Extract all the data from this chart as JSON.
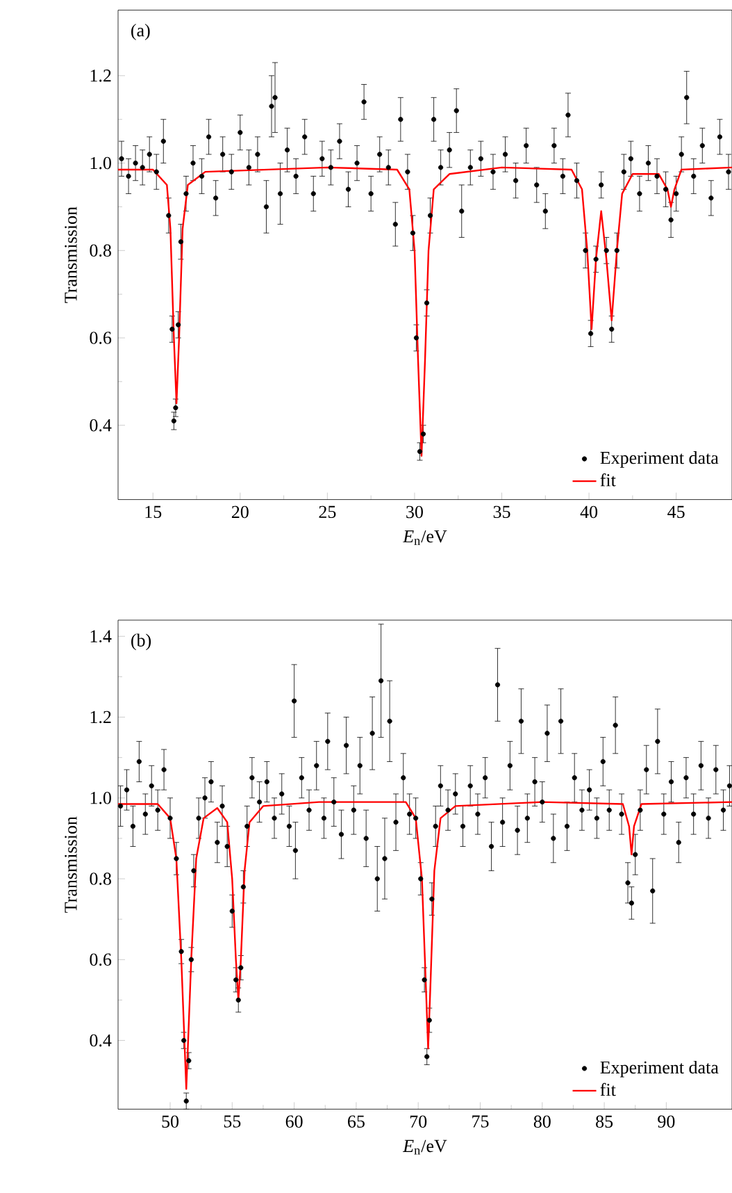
{
  "chart_data": [
    {
      "type": "scatter",
      "xlabel": "*E*$_{n}$/eV",
      "ylabel": "Transmission",
      "annotations": [
        "(a)"
      ],
      "legend": "bottom right",
      "xlim": [
        13,
        48.2
      ],
      "ylim": [
        0.23,
        1.35
      ],
      "xticks": [
        15,
        20,
        25,
        30,
        35,
        40,
        45
      ],
      "yticks": [
        {
          "value": 0.4,
          "label": "0.4"
        },
        {
          "value": 0.6,
          "label": "0.6"
        },
        {
          "value": 0.8,
          "label": "0.8"
        },
        {
          "value": 1.0,
          "label": "1.0"
        },
        {
          "value": 1.2,
          "label": "1.2"
        }
      ],
      "series": [
        {
          "name": "Experiment data",
          "marker": "circle",
          "color": "#000000",
          "x": [
            13.2,
            13.6,
            14.0,
            14.4,
            14.8,
            15.2,
            15.6,
            15.9,
            16.1,
            16.2,
            16.3,
            16.45,
            16.6,
            16.9,
            17.3,
            17.8,
            18.2,
            18.6,
            19.0,
            19.5,
            20.0,
            20.5,
            21.0,
            21.5,
            21.8,
            22.0,
            22.3,
            22.7,
            23.2,
            23.7,
            24.2,
            24.7,
            25.2,
            25.7,
            26.2,
            26.7,
            27.1,
            27.5,
            28.0,
            28.5,
            28.9,
            29.2,
            29.6,
            29.9,
            30.1,
            30.3,
            30.5,
            30.7,
            30.9,
            31.1,
            31.5,
            32.0,
            32.4,
            32.7,
            33.2,
            33.8,
            34.5,
            35.2,
            35.8,
            36.4,
            37.0,
            37.5,
            38.0,
            38.5,
            38.8,
            39.3,
            39.8,
            40.1,
            40.4,
            40.7,
            41.0,
            41.3,
            41.6,
            42.0,
            42.4,
            42.9,
            43.4,
            43.9,
            44.4,
            44.7,
            45.0,
            45.3,
            45.6,
            46.0,
            46.5,
            47.0,
            47.5,
            48.0
          ],
          "values": [
            1.01,
            0.97,
            1.0,
            0.99,
            1.02,
            0.98,
            1.05,
            0.88,
            0.62,
            0.41,
            0.44,
            0.63,
            0.82,
            0.93,
            1.0,
            0.97,
            1.06,
            0.92,
            1.02,
            0.98,
            1.07,
            0.99,
            1.02,
            0.9,
            1.13,
            1.15,
            0.93,
            1.03,
            0.97,
            1.06,
            0.93,
            1.01,
            0.99,
            1.05,
            0.94,
            1.0,
            1.14,
            0.93,
            1.02,
            0.99,
            0.86,
            1.1,
            0.98,
            0.84,
            0.6,
            0.34,
            0.38,
            0.68,
            0.88,
            1.1,
            0.99,
            1.03,
            1.12,
            0.89,
            0.99,
            1.01,
            0.98,
            1.02,
            0.96,
            1.04,
            0.95,
            0.89,
            1.04,
            0.97,
            1.11,
            0.96,
            0.8,
            0.61,
            0.78,
            0.95,
            0.8,
            0.62,
            0.8,
            0.98,
            1.01,
            0.93,
            1.0,
            0.97,
            0.94,
            0.87,
            0.93,
            1.02,
            1.15,
            0.97,
            1.04,
            0.92,
            1.06,
            0.98
          ],
          "errors": [
            0.04,
            0.04,
            0.04,
            0.04,
            0.04,
            0.04,
            0.05,
            0.04,
            0.03,
            0.02,
            0.02,
            0.03,
            0.04,
            0.04,
            0.04,
            0.04,
            0.04,
            0.04,
            0.04,
            0.04,
            0.04,
            0.04,
            0.04,
            0.06,
            0.07,
            0.08,
            0.07,
            0.05,
            0.04,
            0.04,
            0.04,
            0.04,
            0.04,
            0.04,
            0.04,
            0.04,
            0.04,
            0.04,
            0.04,
            0.04,
            0.05,
            0.05,
            0.04,
            0.04,
            0.03,
            0.02,
            0.02,
            0.03,
            0.04,
            0.05,
            0.04,
            0.04,
            0.05,
            0.06,
            0.04,
            0.04,
            0.04,
            0.04,
            0.04,
            0.04,
            0.04,
            0.04,
            0.04,
            0.04,
            0.05,
            0.04,
            0.04,
            0.03,
            0.03,
            0.03,
            0.03,
            0.03,
            0.04,
            0.04,
            0.04,
            0.04,
            0.04,
            0.04,
            0.04,
            0.04,
            0.04,
            0.04,
            0.06,
            0.04,
            0.04,
            0.04,
            0.04,
            0.04
          ]
        },
        {
          "name": "fit",
          "type": "line",
          "marker": "none",
          "line_style": "solid",
          "color": "#ff0000",
          "x": [
            13,
            15,
            15.8,
            16.0,
            16.2,
            16.35,
            16.5,
            16.7,
            17.0,
            18,
            25,
            29,
            29.7,
            30.0,
            30.2,
            30.4,
            30.6,
            30.8,
            31.1,
            32,
            35,
            39,
            39.6,
            39.9,
            40.15,
            40.4,
            40.7,
            41.0,
            41.3,
            41.6,
            41.9,
            42.5,
            44.0,
            44.5,
            44.7,
            44.9,
            45.3,
            48.2
          ],
          "values": [
            0.985,
            0.985,
            0.95,
            0.85,
            0.6,
            0.45,
            0.6,
            0.85,
            0.95,
            0.98,
            0.99,
            0.985,
            0.94,
            0.8,
            0.55,
            0.33,
            0.55,
            0.8,
            0.94,
            0.975,
            0.99,
            0.985,
            0.94,
            0.8,
            0.62,
            0.78,
            0.89,
            0.78,
            0.64,
            0.8,
            0.93,
            0.975,
            0.975,
            0.94,
            0.9,
            0.94,
            0.985,
            0.99
          ]
        }
      ]
    },
    {
      "type": "scatter",
      "xlabel": "*E*$_{n}$/eV",
      "ylabel": "Transmission",
      "annotations": [
        "(b)"
      ],
      "legend": "bottom right",
      "xlim": [
        45.8,
        95.3
      ],
      "ylim": [
        0.23,
        1.44
      ],
      "xticks": [
        50,
        55,
        60,
        65,
        70,
        75,
        80,
        85,
        90
      ],
      "yticks": [
        {
          "value": 0.4,
          "label": "0.4"
        },
        {
          "value": 0.6,
          "label": "0.6"
        },
        {
          "value": 0.8,
          "label": "0.8"
        },
        {
          "value": 1.0,
          "label": "1.0"
        },
        {
          "value": 1.2,
          "label": "1.2"
        },
        {
          "value": 1.4,
          "label": "1.4"
        }
      ],
      "series": [
        {
          "name": "Experiment data",
          "marker": "circle",
          "color": "#000000",
          "x": [
            46.0,
            46.5,
            47.0,
            47.5,
            48.0,
            48.5,
            49.0,
            49.5,
            50.0,
            50.5,
            50.9,
            51.1,
            51.3,
            51.5,
            51.7,
            51.9,
            52.3,
            52.8,
            53.3,
            53.8,
            54.2,
            54.6,
            55.0,
            55.3,
            55.5,
            55.7,
            55.9,
            56.2,
            56.6,
            57.2,
            57.8,
            58.4,
            59.0,
            59.6,
            60.0,
            60.1,
            60.6,
            61.2,
            61.8,
            62.4,
            62.7,
            63.2,
            63.8,
            64.2,
            64.8,
            65.3,
            65.8,
            66.3,
            66.7,
            67.0,
            67.3,
            67.7,
            68.2,
            68.8,
            69.3,
            69.8,
            70.2,
            70.5,
            70.7,
            70.9,
            71.1,
            71.4,
            71.8,
            72.4,
            73.0,
            73.6,
            74.2,
            74.8,
            75.4,
            75.9,
            76.4,
            76.8,
            77.4,
            78.0,
            78.3,
            78.8,
            79.4,
            80.0,
            80.4,
            80.9,
            81.5,
            82.0,
            82.6,
            83.2,
            83.8,
            84.4,
            84.9,
            85.4,
            85.9,
            86.4,
            86.9,
            87.2,
            87.5,
            87.9,
            88.4,
            88.9,
            89.3,
            89.8,
            90.4,
            91.0,
            91.6,
            92.2,
            92.8,
            93.4,
            94.0,
            94.6,
            95.1
          ],
          "values": [
            0.98,
            1.02,
            0.93,
            1.09,
            0.96,
            1.03,
            0.97,
            1.07,
            0.95,
            0.85,
            0.62,
            0.4,
            0.25,
            0.35,
            0.6,
            0.82,
            0.95,
            1.0,
            1.04,
            0.89,
            0.98,
            0.88,
            0.72,
            0.55,
            0.5,
            0.58,
            0.78,
            0.93,
            1.05,
            0.99,
            1.04,
            0.95,
            1.01,
            0.93,
            1.24,
            0.87,
            1.05,
            0.97,
            1.08,
            0.95,
            1.14,
            0.99,
            0.91,
            1.13,
            0.97,
            1.08,
            0.9,
            1.16,
            0.8,
            1.29,
            0.85,
            1.19,
            0.94,
            1.05,
            0.96,
            0.95,
            0.8,
            0.55,
            0.36,
            0.45,
            0.75,
            0.93,
            1.03,
            0.97,
            1.01,
            0.93,
            1.03,
            0.96,
            1.05,
            0.88,
            1.28,
            0.94,
            1.08,
            0.92,
            1.19,
            0.95,
            1.04,
            0.99,
            1.16,
            0.9,
            1.19,
            0.93,
            1.05,
            0.97,
            1.02,
            0.95,
            1.09,
            0.97,
            1.18,
            0.96,
            0.79,
            0.74,
            0.86,
            0.97,
            1.07,
            0.77,
            1.14,
            0.96,
            1.04,
            0.89,
            1.05,
            0.96,
            1.08,
            0.95,
            1.07,
            0.97,
            1.03
          ],
          "errors": [
            0.05,
            0.05,
            0.05,
            0.05,
            0.05,
            0.05,
            0.05,
            0.05,
            0.05,
            0.04,
            0.03,
            0.02,
            0.02,
            0.02,
            0.03,
            0.04,
            0.05,
            0.05,
            0.05,
            0.05,
            0.05,
            0.05,
            0.04,
            0.03,
            0.03,
            0.03,
            0.04,
            0.05,
            0.05,
            0.05,
            0.05,
            0.05,
            0.05,
            0.05,
            0.09,
            0.07,
            0.05,
            0.05,
            0.06,
            0.05,
            0.07,
            0.06,
            0.06,
            0.07,
            0.06,
            0.07,
            0.07,
            0.09,
            0.08,
            0.14,
            0.1,
            0.1,
            0.07,
            0.06,
            0.05,
            0.05,
            0.04,
            0.03,
            0.02,
            0.03,
            0.04,
            0.05,
            0.05,
            0.05,
            0.05,
            0.05,
            0.05,
            0.05,
            0.05,
            0.06,
            0.09,
            0.06,
            0.06,
            0.06,
            0.08,
            0.06,
            0.06,
            0.05,
            0.07,
            0.06,
            0.08,
            0.06,
            0.06,
            0.05,
            0.05,
            0.05,
            0.06,
            0.05,
            0.07,
            0.05,
            0.05,
            0.04,
            0.05,
            0.05,
            0.06,
            0.08,
            0.08,
            0.05,
            0.05,
            0.05,
            0.05,
            0.05,
            0.06,
            0.05,
            0.06,
            0.05,
            0.05
          ]
        },
        {
          "name": "fit",
          "type": "line",
          "marker": "none",
          "line_style": "solid",
          "color": "#ff0000",
          "x": [
            45.8,
            49,
            50.0,
            50.5,
            50.9,
            51.3,
            51.7,
            52.1,
            52.7,
            53.8,
            54.6,
            55.0,
            55.3,
            55.5,
            55.7,
            56.0,
            56.4,
            57.5,
            62,
            69,
            69.8,
            70.3,
            70.6,
            70.8,
            71.0,
            71.3,
            71.8,
            73,
            80,
            86.5,
            87.0,
            87.2,
            87.4,
            88.0,
            95.3
          ],
          "values": [
            0.985,
            0.985,
            0.95,
            0.85,
            0.6,
            0.28,
            0.6,
            0.85,
            0.95,
            0.975,
            0.94,
            0.8,
            0.6,
            0.5,
            0.6,
            0.82,
            0.94,
            0.98,
            0.99,
            0.99,
            0.95,
            0.8,
            0.55,
            0.38,
            0.55,
            0.82,
            0.95,
            0.98,
            0.99,
            0.985,
            0.93,
            0.86,
            0.93,
            0.985,
            0.99
          ]
        }
      ]
    }
  ]
}
